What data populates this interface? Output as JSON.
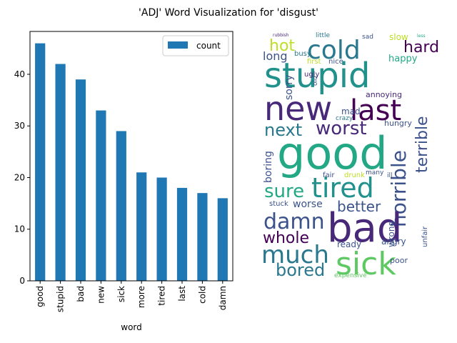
{
  "figure": {
    "title": "'ADJ' Word Visualization for 'disgust'"
  },
  "chart_data": [
    {
      "type": "bar",
      "categories": [
        "good",
        "stupid",
        "bad",
        "new",
        "sick",
        "more",
        "tired",
        "last",
        "cold",
        "damn"
      ],
      "series": [
        {
          "name": "count",
          "values": [
            46,
            42,
            39,
            33,
            29,
            21,
            20,
            18,
            17,
            16
          ],
          "color": "#1f77b4"
        }
      ],
      "xlabel": "word",
      "ylabel": "",
      "ylim": [
        0,
        48.3
      ],
      "yticks": [
        0,
        10,
        20,
        30,
        40
      ],
      "legend": {
        "entries": [
          "count"
        ],
        "placement": "upper-right"
      },
      "grid": false
    },
    {
      "type": "wordcloud",
      "words": [
        {
          "text": "rubbish",
          "color": "#482878"
        },
        {
          "text": "hot",
          "color": "#bddf26"
        },
        {
          "text": "little",
          "color": "#2a788e"
        },
        {
          "text": "cold",
          "color": "#2a788e"
        },
        {
          "text": "sad",
          "color": "#3b528b"
        },
        {
          "text": "slow",
          "color": "#bddf26"
        },
        {
          "text": "less",
          "color": "#22a884"
        },
        {
          "text": "hard",
          "color": "#440154"
        },
        {
          "text": "long",
          "color": "#3b528b"
        },
        {
          "text": "busy",
          "color": "#2a788e"
        },
        {
          "text": "happy",
          "color": "#22a884"
        },
        {
          "text": "first",
          "color": "#bddf26"
        },
        {
          "text": "nice",
          "color": "#3b528b"
        },
        {
          "text": "stupid",
          "color": "#21918c"
        },
        {
          "text": "sorry",
          "color": "#3b528b"
        },
        {
          "text": "ugly",
          "color": "#482878"
        },
        {
          "text": "old",
          "color": "#3b528b"
        },
        {
          "text": "new",
          "color": "#482878"
        },
        {
          "text": "last",
          "color": "#440154"
        },
        {
          "text": "annoying",
          "color": "#482878"
        },
        {
          "text": "mad",
          "color": "#3b528b"
        },
        {
          "text": "crazy",
          "color": "#2a788e"
        },
        {
          "text": "next",
          "color": "#2a788e"
        },
        {
          "text": "worst",
          "color": "#482878"
        },
        {
          "text": "hungry",
          "color": "#3b528b"
        },
        {
          "text": "terrible",
          "color": "#3b528b"
        },
        {
          "text": "good",
          "color": "#22a884"
        },
        {
          "text": "boring",
          "color": "#3b528b"
        },
        {
          "text": "tired",
          "color": "#21918c"
        },
        {
          "text": "sure",
          "color": "#22a884"
        },
        {
          "text": "horrible",
          "color": "#3b528b"
        },
        {
          "text": "drunk",
          "color": "#bddf26"
        },
        {
          "text": "fair",
          "color": "#3b528b"
        },
        {
          "text": "many",
          "color": "#3b528b"
        },
        {
          "text": "ill",
          "color": "#3b528b"
        },
        {
          "text": "better",
          "color": "#3b528b"
        },
        {
          "text": "worse",
          "color": "#3b528b"
        },
        {
          "text": "stuck",
          "color": "#3b528b"
        },
        {
          "text": "damn",
          "color": "#3b528b"
        },
        {
          "text": "bad",
          "color": "#482878"
        },
        {
          "text": "whole",
          "color": "#440154"
        },
        {
          "text": "ready",
          "color": "#3b528b"
        },
        {
          "text": "angry",
          "color": "#3b528b"
        },
        {
          "text": "wrong",
          "color": "#3b528b"
        },
        {
          "text": "much",
          "color": "#2a788e"
        },
        {
          "text": "sick",
          "color": "#5ec962"
        },
        {
          "text": "poor",
          "color": "#3b528b"
        },
        {
          "text": "bored",
          "color": "#2a788e"
        },
        {
          "text": "expensive",
          "color": "#5ec962"
        },
        {
          "text": "unfair",
          "color": "#3b528b"
        }
      ]
    }
  ]
}
